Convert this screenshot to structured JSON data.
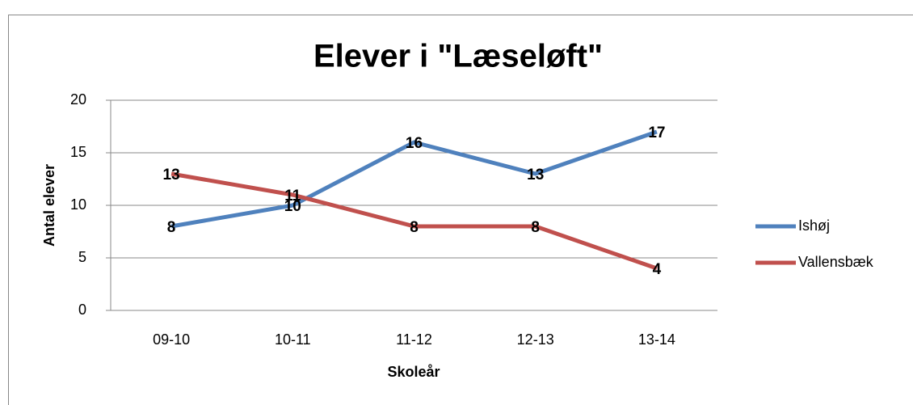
{
  "chart_data": {
    "type": "line",
    "title": "Elever i \"Læseløft\"",
    "x_label": "Skoleår",
    "y_label": "Antal elever",
    "categories": [
      "09-10",
      "10-11",
      "11-12",
      "12-13",
      "13-14"
    ],
    "series": [
      {
        "name": "Ishøj",
        "color": "#4f81bd",
        "values": [
          8,
          10,
          16,
          13,
          17
        ]
      },
      {
        "name": "Vallensbæk",
        "color": "#c0504d",
        "values": [
          13,
          11,
          8,
          8,
          4
        ]
      }
    ],
    "ylim": [
      0,
      20
    ],
    "yticks": [
      0,
      5,
      10,
      15,
      20
    ],
    "grid": true,
    "legend": "right"
  }
}
